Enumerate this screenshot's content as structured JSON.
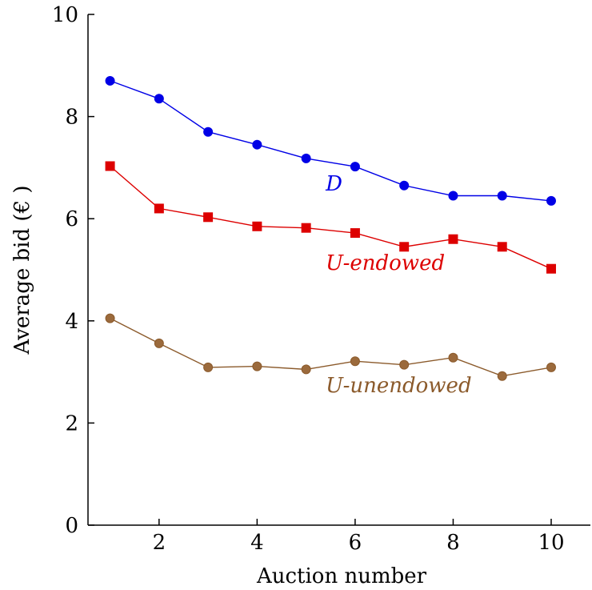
{
  "chart_data": {
    "type": "line",
    "xlabel": "Auction number",
    "ylabel": "Average bid (€ )",
    "xlim": [
      0.55,
      10.8
    ],
    "ylim": [
      0,
      10
    ],
    "x_ticks": [
      2,
      4,
      6,
      8,
      10
    ],
    "y_ticks": [
      0,
      2,
      4,
      6,
      8,
      10
    ],
    "x": [
      1,
      2,
      3,
      4,
      5,
      6,
      7,
      8,
      9,
      10
    ],
    "grid": false,
    "legend": "inline labels near series",
    "series": [
      {
        "name": "D",
        "marker": "circle",
        "color": "#0000e6",
        "values": [
          8.7,
          8.35,
          7.7,
          7.45,
          7.18,
          7.02,
          6.65,
          6.45,
          6.45,
          6.35
        ],
        "label_anchor": {
          "x": 5.4,
          "y": 6.55
        }
      },
      {
        "name": "U-endowed",
        "marker": "square",
        "color": "#dd0000",
        "values": [
          7.03,
          6.2,
          6.03,
          5.85,
          5.82,
          5.72,
          5.45,
          5.6,
          5.45,
          5.02
        ],
        "label_anchor": {
          "x": 5.4,
          "y": 5.0
        }
      },
      {
        "name": "U-unendowed",
        "marker": "circle",
        "color": "#8b5a2b",
        "marker_fill": "#9b6a3c",
        "values": [
          4.05,
          3.56,
          3.09,
          3.11,
          3.05,
          3.21,
          3.14,
          3.28,
          2.92,
          3.09
        ],
        "label_anchor": {
          "x": 5.4,
          "y": 2.6
        }
      }
    ]
  }
}
